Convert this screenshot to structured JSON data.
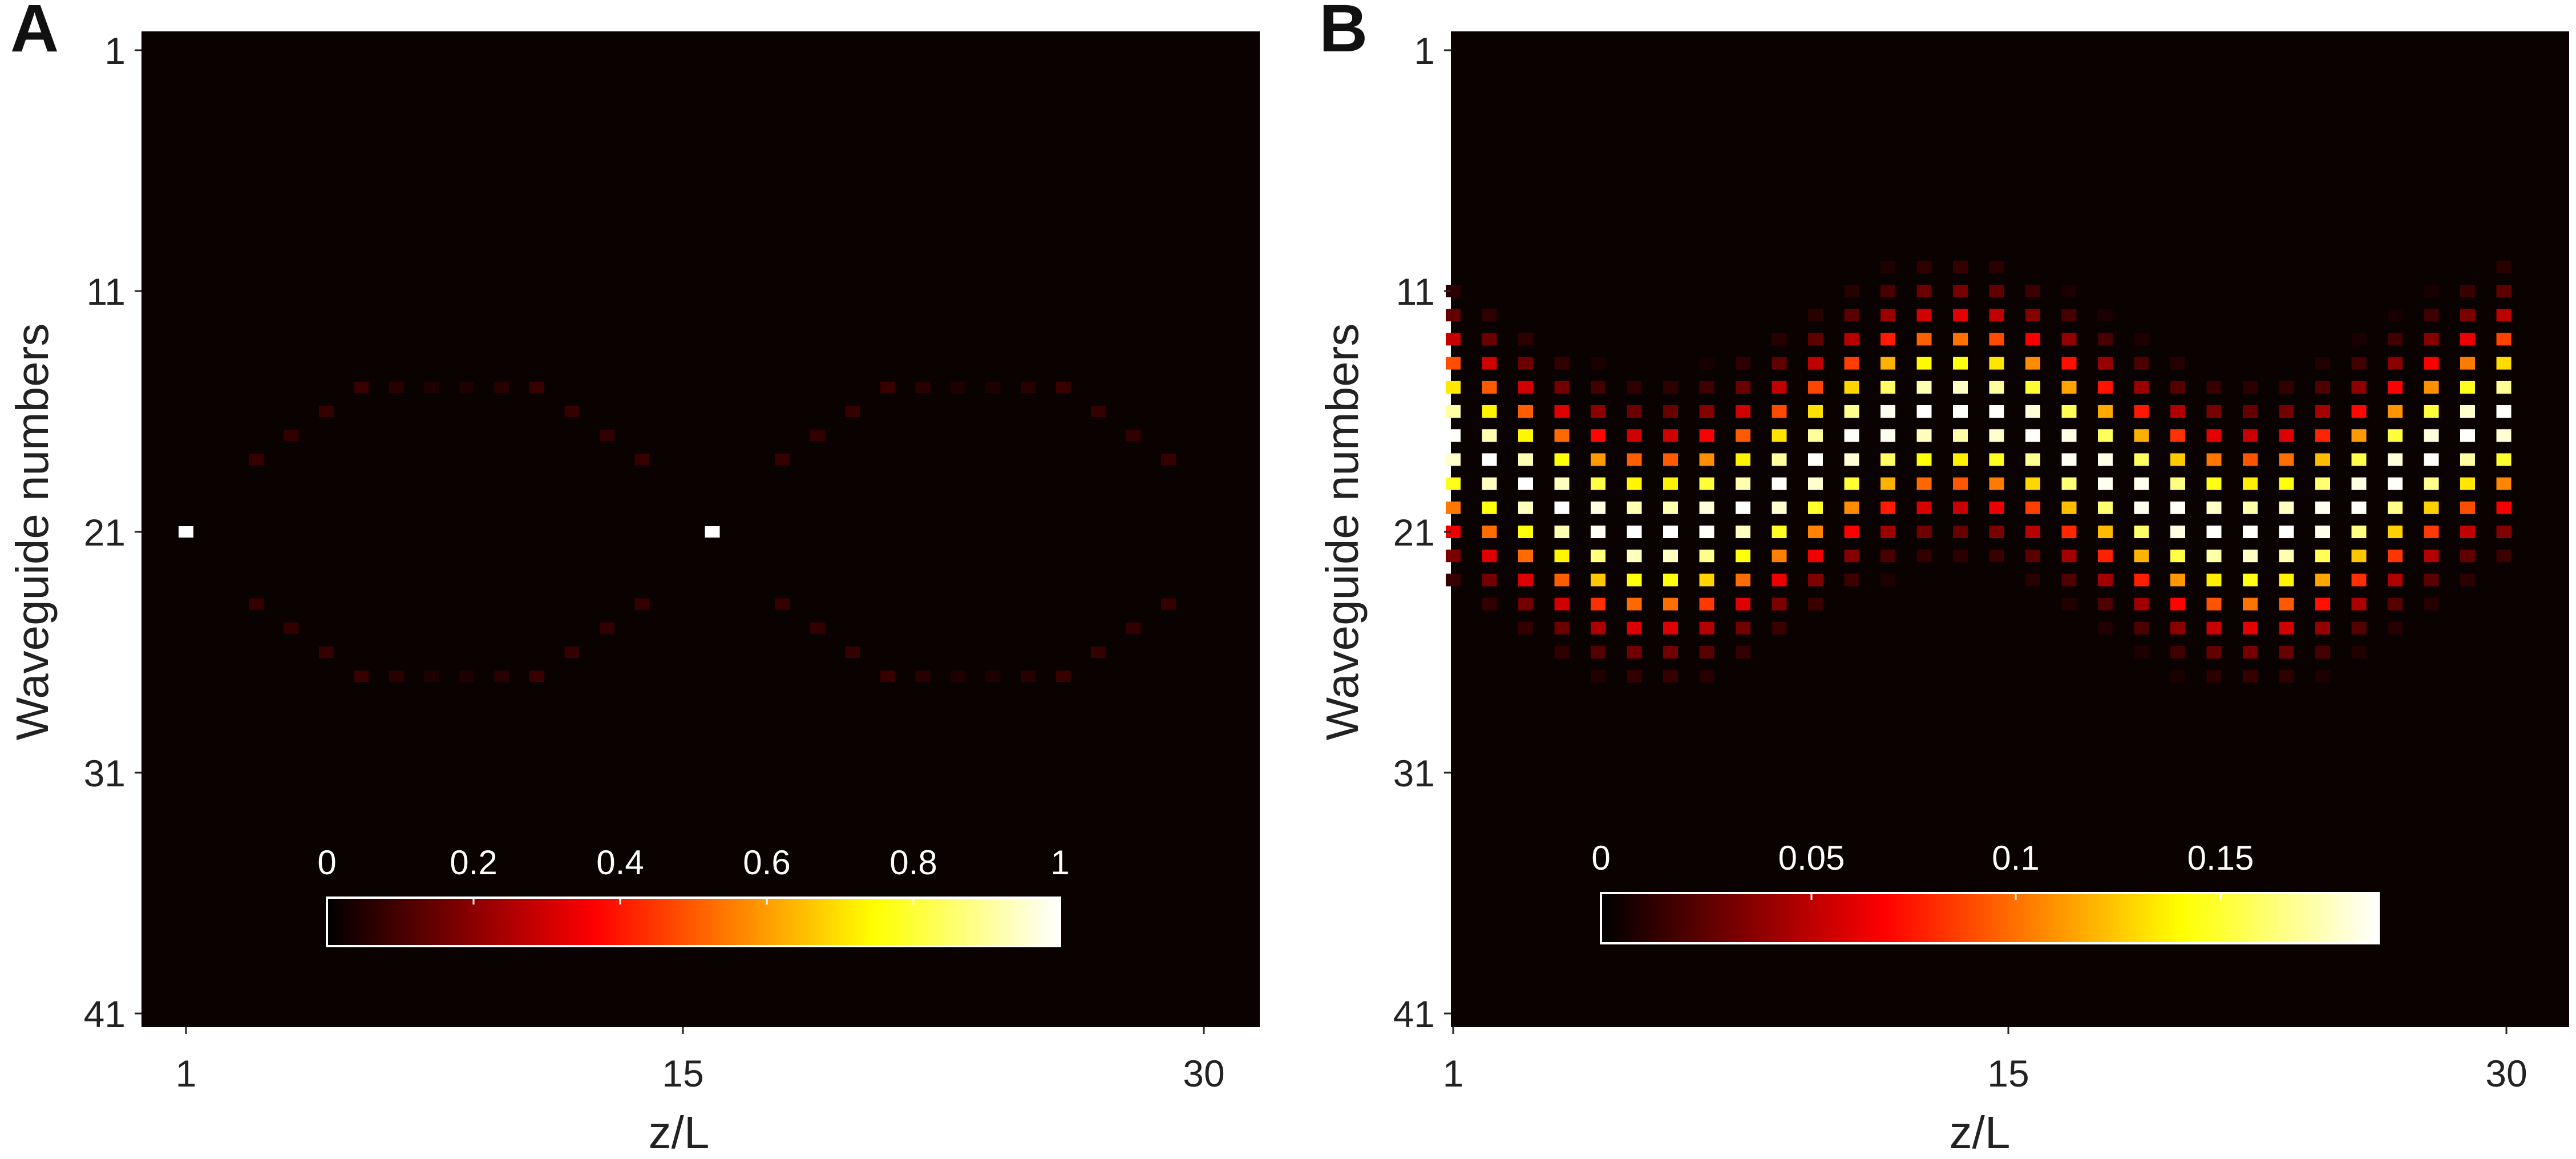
{
  "chart_data": [
    {
      "panel": "A",
      "type": "heatmap",
      "title": "",
      "xlabel": "z/L",
      "ylabel": "Waveguide numbers",
      "xlim": [
        0.75,
        32.5
      ],
      "ylim": [
        41.5,
        0.25
      ],
      "xticks": [
        1,
        15,
        30
      ],
      "xtick_labels": [
        "1",
        "15",
        "30"
      ],
      "yticks": [
        1,
        11,
        21,
        31,
        41
      ],
      "ytick_labels": [
        "1",
        "11",
        "21",
        "31",
        "41"
      ],
      "colormap": "hot",
      "colorbar": {
        "min": 0,
        "max": 1,
        "ticks": [
          0,
          0.2,
          0.4,
          0.6,
          0.8,
          1
        ],
        "tick_labels": [
          "0",
          "0.2",
          "0.4",
          "0.6",
          "0.8",
          "1"
        ],
        "placement": "inside-bottom"
      },
      "model": "one-period",
      "period": 15,
      "center": 21,
      "center_max": 1.0,
      "spread_max": 0.085,
      "pulse_sigma": 5.0,
      "z": [
        1,
        2,
        3,
        4,
        5,
        6,
        7,
        8,
        9,
        10,
        11,
        12,
        13,
        14,
        15,
        16,
        17,
        18,
        19,
        20,
        21,
        22,
        23,
        24,
        25,
        26,
        27,
        28,
        29,
        30
      ]
    },
    {
      "panel": "B",
      "type": "heatmap",
      "title": "",
      "xlabel": "z/L",
      "ylabel": "Waveguide numbers",
      "xlim": [
        0.9,
        31.2
      ],
      "ylim": [
        41.5,
        0.25
      ],
      "xticks": [
        1,
        15,
        30
      ],
      "xtick_labels": [
        "1",
        "15",
        "30"
      ],
      "yticks": [
        1,
        11,
        21,
        31,
        41
      ],
      "ytick_labels": [
        "1",
        "11",
        "21",
        "31",
        "41"
      ],
      "colormap": "hot",
      "colorbar": {
        "min": 0,
        "max": 0.19,
        "ticks": [
          0,
          0.05,
          0.1,
          0.15
        ],
        "tick_labels": [
          "0",
          "0.05",
          "0.1",
          "0.15"
        ],
        "placement": "inside-bottom"
      },
      "model": "breathing-pulse",
      "period": 16.5,
      "center_mean": 18.5,
      "center_amp": 2.6,
      "beam_sigma": 2.6,
      "peak_max": 0.19,
      "z": [
        1,
        2,
        3,
        4,
        5,
        6,
        7,
        8,
        9,
        10,
        11,
        12,
        13,
        14,
        15,
        16,
        17,
        18,
        19,
        20,
        21,
        22,
        23,
        24,
        25,
        26,
        27,
        28,
        29,
        30
      ]
    }
  ]
}
